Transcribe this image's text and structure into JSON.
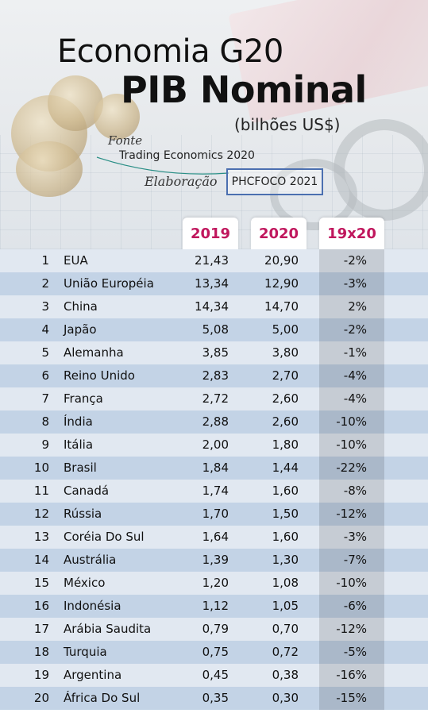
{
  "title": "Economia G20",
  "subtitle": "PIB Nominal",
  "unit": "(bilhões US$)",
  "source_label": "Fonte",
  "source_value": "Trading Economics 2020",
  "author_label": "Elaboração",
  "author_value": "PHCFOCO 2021",
  "chart_data": {
    "type": "table",
    "title": "Economia G20",
    "subtitle": "PIB Nominal",
    "unit": "(bilhões US$)",
    "columns": [
      "2019",
      "2020",
      "19x20"
    ],
    "rows": [
      {
        "rank": "1",
        "country": "EUA",
        "y2019": "21,43",
        "y2020": "20,90",
        "change": "-2%"
      },
      {
        "rank": "2",
        "country": "União Européia",
        "y2019": "13,34",
        "y2020": "12,90",
        "change": "-3%"
      },
      {
        "rank": "3",
        "country": "China",
        "y2019": "14,34",
        "y2020": "14,70",
        "change": "2%"
      },
      {
        "rank": "4",
        "country": "Japão",
        "y2019": "5,08",
        "y2020": "5,00",
        "change": "-2%"
      },
      {
        "rank": "5",
        "country": "Alemanha",
        "y2019": "3,85",
        "y2020": "3,80",
        "change": "-1%"
      },
      {
        "rank": "6",
        "country": "Reino Unido",
        "y2019": "2,83",
        "y2020": "2,70",
        "change": "-4%"
      },
      {
        "rank": "7",
        "country": "França",
        "y2019": "2,72",
        "y2020": "2,60",
        "change": "-4%"
      },
      {
        "rank": "8",
        "country": "Índia",
        "y2019": "2,88",
        "y2020": "2,60",
        "change": "-10%"
      },
      {
        "rank": "9",
        "country": "Itália",
        "y2019": "2,00",
        "y2020": "1,80",
        "change": "-10%"
      },
      {
        "rank": "10",
        "country": "Brasil",
        "y2019": "1,84",
        "y2020": "1,44",
        "change": "-22%"
      },
      {
        "rank": "11",
        "country": "Canadá",
        "y2019": "1,74",
        "y2020": "1,60",
        "change": "-8%"
      },
      {
        "rank": "12",
        "country": "Rússia",
        "y2019": "1,70",
        "y2020": "1,50",
        "change": "-12%"
      },
      {
        "rank": "13",
        "country": "Coréia Do Sul",
        "y2019": "1,64",
        "y2020": "1,60",
        "change": "-3%"
      },
      {
        "rank": "14",
        "country": "Austrália",
        "y2019": "1,39",
        "y2020": "1,30",
        "change": "-7%"
      },
      {
        "rank": "15",
        "country": "México",
        "y2019": "1,20",
        "y2020": "1,08",
        "change": "-10%"
      },
      {
        "rank": "16",
        "country": "Indonésia",
        "y2019": "1,12",
        "y2020": "1,05",
        "change": "-6%"
      },
      {
        "rank": "17",
        "country": "Arábia Saudita",
        "y2019": "0,79",
        "y2020": "0,70",
        "change": "-12%"
      },
      {
        "rank": "18",
        "country": "Turquia",
        "y2019": "0,75",
        "y2020": "0,72",
        "change": "-5%"
      },
      {
        "rank": "19",
        "country": "Argentina",
        "y2019": "0,45",
        "y2020": "0,38",
        "change": "-16%"
      },
      {
        "rank": "20",
        "country": "África Do Sul",
        "y2019": "0,35",
        "y2020": "0,30",
        "change": "-15%"
      }
    ]
  },
  "colors": {
    "header_text": "#c0175d",
    "row_light": "#e1e8f1",
    "row_dark": "#c3d3e6",
    "change_light": "#c6ccd4",
    "change_dark": "#aab8c9",
    "box_border": "#4b6fb0"
  }
}
